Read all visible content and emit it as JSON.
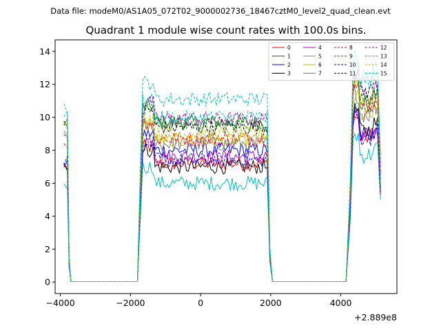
{
  "chart_data": {
    "type": "line",
    "suptitle": "Data file: modeM0/AS1A05_072T02_9000002736_18467cztM0_level2_quad_clean.evt",
    "title": "Quadrant 1 module wise count rates with 100.0s bins.",
    "xlabel": "",
    "ylabel": "",
    "x_offset_label": "+2.889e8",
    "xlim": [
      -4150,
      5600
    ],
    "ylim": [
      -0.7,
      14.7
    ],
    "x_ticks": [
      -4000,
      -2000,
      0,
      2000,
      4000
    ],
    "x_tick_labels": [
      "−4000",
      "−2000",
      "0",
      "2000",
      "4000"
    ],
    "y_ticks": [
      0,
      2,
      4,
      6,
      8,
      10,
      12,
      14
    ],
    "y_tick_labels": [
      "0",
      "2",
      "4",
      "6",
      "8",
      "10",
      "12",
      "14"
    ],
    "legend_position": "top-right",
    "segments": [
      {
        "x_start": -3900,
        "x_end": -3800
      },
      {
        "x_start": -1700,
        "x_end": 1900
      },
      {
        "x_start": 4300,
        "x_end": 5100
      }
    ],
    "gaps": [
      {
        "x_start": -3700,
        "x_end": -1800
      },
      {
        "x_start": 2000,
        "x_end": 4200
      }
    ],
    "series": [
      {
        "name": "0",
        "color": "#ff0000",
        "dash": "solid",
        "seg_levels": [
          7.0,
          7.2,
          8.6
        ]
      },
      {
        "name": "1",
        "color": "#008000",
        "dash": "solid",
        "seg_levels": [
          9.6,
          9.7,
          10.6
        ]
      },
      {
        "name": "2",
        "color": "#0000ff",
        "dash": "solid",
        "seg_levels": [
          6.9,
          8.0,
          8.8
        ]
      },
      {
        "name": "3",
        "color": "#000000",
        "dash": "solid",
        "seg_levels": [
          7.2,
          7.0,
          9.0
        ]
      },
      {
        "name": "4",
        "color": "#bf00bf",
        "dash": "solid",
        "seg_levels": [
          7.1,
          7.6,
          8.5
        ]
      },
      {
        "name": "5",
        "color": "#00bfbf",
        "dash": "solid",
        "seg_levels": [
          6.0,
          6.0,
          7.5
        ]
      },
      {
        "name": "6",
        "color": "#bfbf00",
        "dash": "solid",
        "seg_levels": [
          9.5,
          8.6,
          9.8
        ]
      },
      {
        "name": "7",
        "color": "#808080",
        "dash": "solid",
        "seg_levels": [
          9.2,
          8.4,
          10.0
        ]
      },
      {
        "name": "8",
        "color": "#ff0000",
        "dash": "dashed",
        "seg_levels": [
          8.5,
          8.7,
          10.5
        ]
      },
      {
        "name": "9",
        "color": "#008000",
        "dash": "dashed",
        "seg_levels": [
          9.8,
          9.6,
          11.0
        ]
      },
      {
        "name": "10",
        "color": "#0000ff",
        "dash": "dashed",
        "seg_levels": [
          7.3,
          7.4,
          8.6
        ]
      },
      {
        "name": "11",
        "color": "#000000",
        "dash": "dashed",
        "seg_levels": [
          9.5,
          9.4,
          11.4
        ]
      },
      {
        "name": "12",
        "color": "#bf00bf",
        "dash": "dashed",
        "seg_levels": [
          9.0,
          9.9,
          11.3
        ]
      },
      {
        "name": "13",
        "color": "#00bfbf",
        "dash": "dashed",
        "seg_levels": [
          10.7,
          11.1,
          12.4
        ]
      },
      {
        "name": "14",
        "color": "#bfbf00",
        "dash": "dashed",
        "seg_levels": [
          9.3,
          9.0,
          10.8
        ]
      },
      {
        "name": "15",
        "color": "#00bfbf",
        "dash": "dashed",
        "seg_levels": [
          10.2,
          10.0,
          12.0
        ]
      }
    ]
  }
}
